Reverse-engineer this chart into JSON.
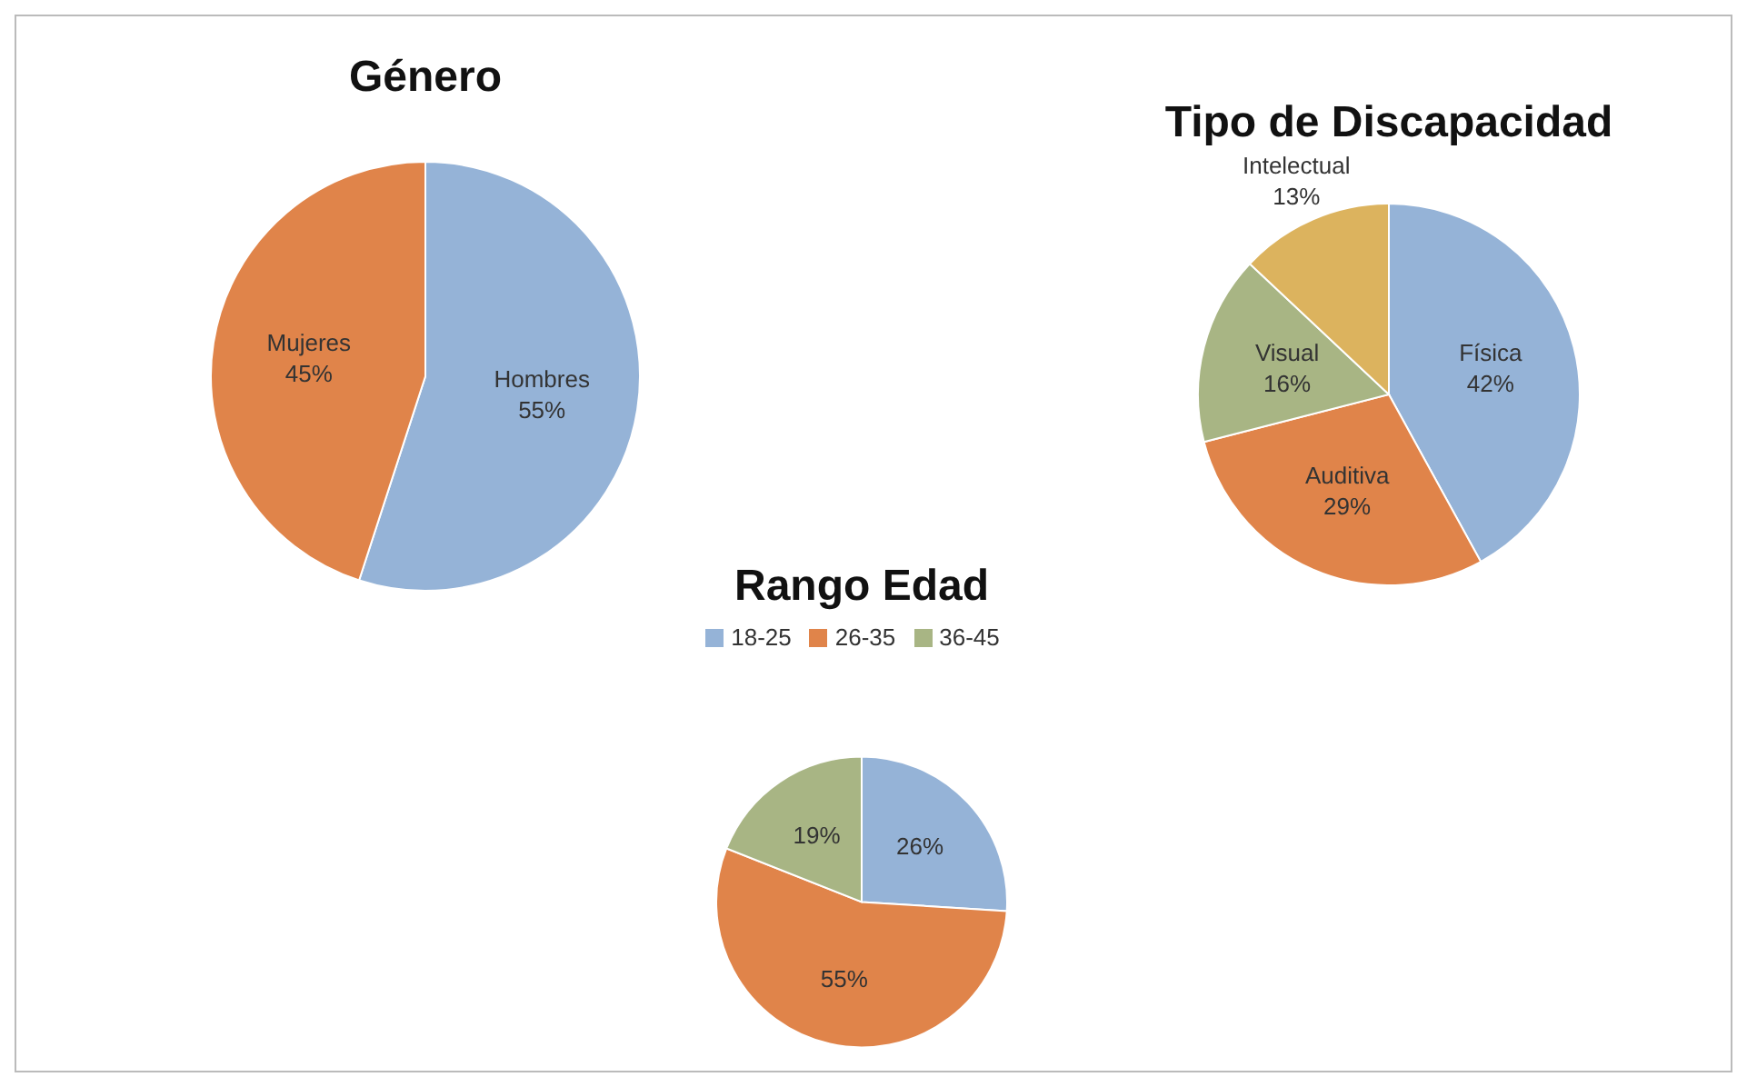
{
  "chart_data": [
    {
      "type": "pie",
      "title": "Género",
      "categories": [
        "Hombres",
        "Mujeres"
      ],
      "values": [
        55,
        45
      ],
      "colors": [
        "#95b3d7",
        "#e0844a"
      ],
      "value_labels": [
        "55%",
        "45%"
      ],
      "legend": false
    },
    {
      "type": "pie",
      "title": "Tipo de Discapacidad",
      "categories": [
        "Física",
        "Auditiva",
        "Visual",
        "Intelectual"
      ],
      "values": [
        42,
        29,
        16,
        13
      ],
      "colors": [
        "#95b3d7",
        "#e0844a",
        "#a8b584",
        "#dcb35e"
      ],
      "value_labels": [
        "42%",
        "29%",
        "16%",
        "13%"
      ],
      "legend": false
    },
    {
      "type": "pie",
      "title": "Rango Edad",
      "categories": [
        "18-25",
        "26-35",
        "36-45"
      ],
      "values": [
        26,
        55,
        19
      ],
      "colors": [
        "#95b3d7",
        "#e0844a",
        "#a8b584"
      ],
      "value_labels": [
        "26%",
        "55%",
        "19%"
      ],
      "legend": "top"
    }
  ]
}
